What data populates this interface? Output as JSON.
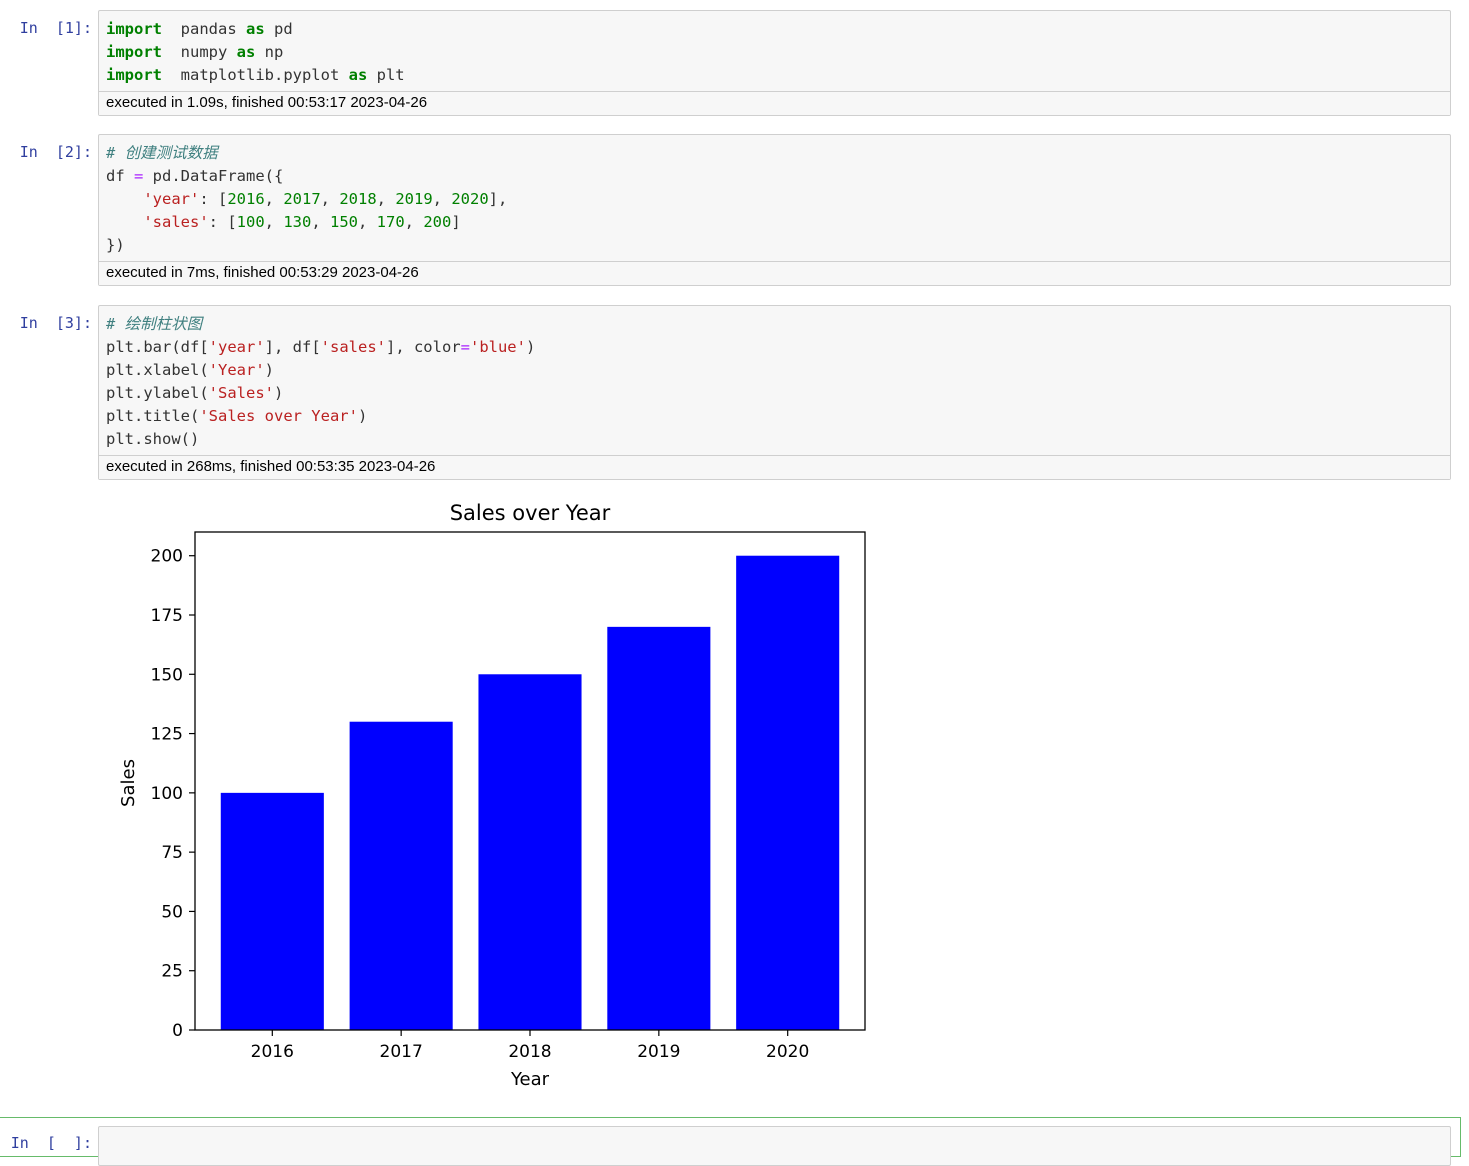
{
  "cells": [
    {
      "prompt": "In  [1]:",
      "lines": [
        [
          [
            "kw",
            "import"
          ],
          [
            "",
            "  pandas "
          ],
          [
            "kw",
            "as"
          ],
          [
            "",
            " pd"
          ]
        ],
        [
          [
            "kw",
            "import"
          ],
          [
            "",
            "  numpy "
          ],
          [
            "kw",
            "as"
          ],
          [
            "",
            " np"
          ]
        ],
        [
          [
            "kw",
            "import"
          ],
          [
            "",
            "  matplotlib.pyplot "
          ],
          [
            "kw",
            "as"
          ],
          [
            "",
            " plt"
          ]
        ]
      ],
      "exec": "executed in 1.09s, finished 00:53:17 2023-04-26"
    },
    {
      "prompt": "In  [2]:",
      "lines": [
        [
          [
            "cm",
            "# 创建测试数据"
          ]
        ],
        [
          [
            "",
            "df "
          ],
          [
            "op",
            "="
          ],
          [
            "",
            " pd.DataFrame({"
          ]
        ],
        [
          [
            "",
            "    "
          ],
          [
            "st",
            "'year'"
          ],
          [
            "",
            ": ["
          ],
          [
            "nu",
            "2016"
          ],
          [
            "",
            ", "
          ],
          [
            "nu",
            "2017"
          ],
          [
            "",
            ", "
          ],
          [
            "nu",
            "2018"
          ],
          [
            "",
            ", "
          ],
          [
            "nu",
            "2019"
          ],
          [
            "",
            ", "
          ],
          [
            "nu",
            "2020"
          ],
          [
            "",
            "],"
          ]
        ],
        [
          [
            "",
            "    "
          ],
          [
            "st",
            "'sales'"
          ],
          [
            "",
            ": ["
          ],
          [
            "nu",
            "100"
          ],
          [
            "",
            ", "
          ],
          [
            "nu",
            "130"
          ],
          [
            "",
            ", "
          ],
          [
            "nu",
            "150"
          ],
          [
            "",
            ", "
          ],
          [
            "nu",
            "170"
          ],
          [
            "",
            ", "
          ],
          [
            "nu",
            "200"
          ],
          [
            "",
            "]"
          ]
        ],
        [
          [
            "",
            "})"
          ]
        ]
      ],
      "exec": "executed in 7ms, finished 00:53:29 2023-04-26"
    },
    {
      "prompt": "In  [3]:",
      "lines": [
        [
          [
            "cm",
            "# 绘制柱状图"
          ]
        ],
        [
          [
            "",
            "plt.bar(df["
          ],
          [
            "st",
            "'year'"
          ],
          [
            "",
            "], df["
          ],
          [
            "st",
            "'sales'"
          ],
          [
            "",
            "], color"
          ],
          [
            "op",
            "="
          ],
          [
            "st",
            "'blue'"
          ],
          [
            "",
            ")"
          ]
        ],
        [
          [
            "",
            "plt.xlabel("
          ],
          [
            "st",
            "'Year'"
          ],
          [
            "",
            ")"
          ]
        ],
        [
          [
            "",
            "plt.ylabel("
          ],
          [
            "st",
            "'Sales'"
          ],
          [
            "",
            ")"
          ]
        ],
        [
          [
            "",
            "plt.title("
          ],
          [
            "st",
            "'Sales over Year'"
          ],
          [
            "",
            ")"
          ]
        ],
        [
          [
            "",
            "plt.show()"
          ]
        ]
      ],
      "exec": "executed in 268ms, finished 00:53:35 2023-04-26"
    }
  ],
  "empty_cell": {
    "prompt": "In  [  ]:"
  },
  "chart_data": {
    "type": "bar",
    "title": "Sales over Year",
    "xlabel": "Year",
    "ylabel": "Sales",
    "categories": [
      "2016",
      "2017",
      "2018",
      "2019",
      "2020"
    ],
    "values": [
      100,
      130,
      150,
      170,
      200
    ],
    "color": "#0000ff",
    "ylim": [
      0,
      210
    ],
    "yticks": [
      0,
      25,
      50,
      75,
      100,
      125,
      150,
      175,
      200
    ],
    "grid": false
  }
}
